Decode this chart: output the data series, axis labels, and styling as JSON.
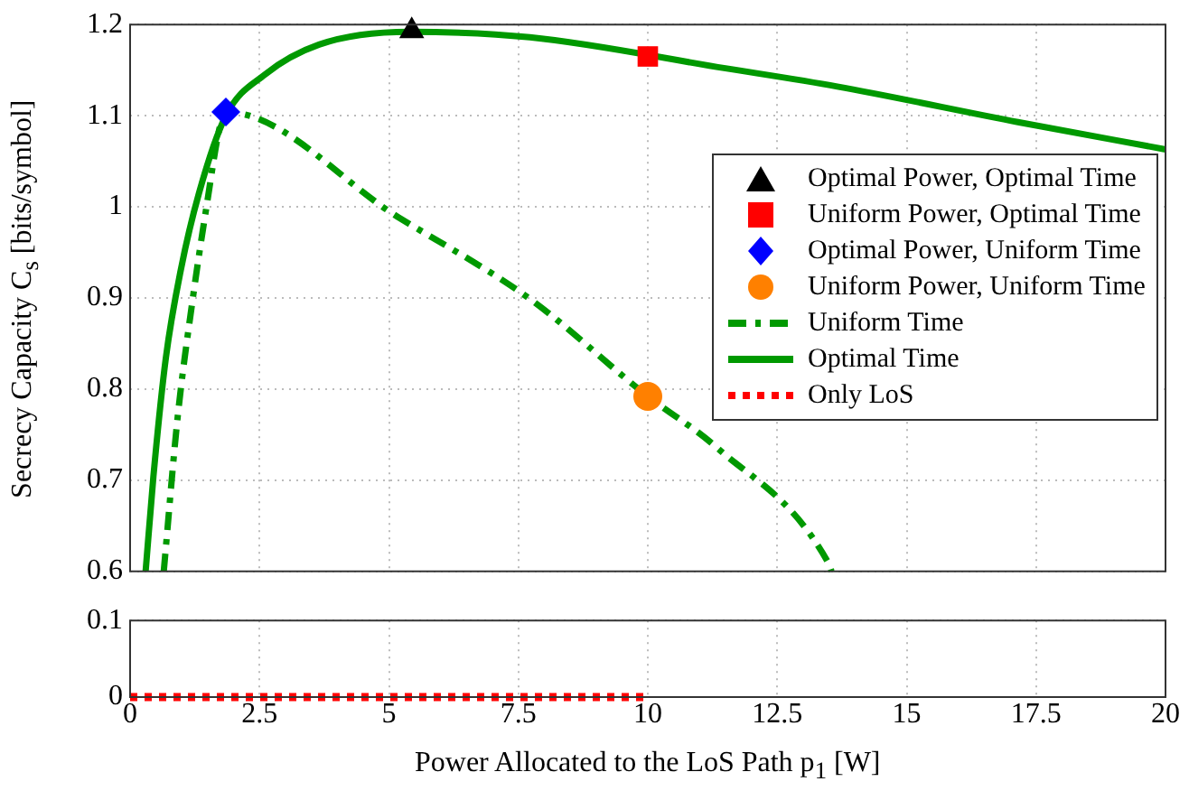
{
  "chart_data": [
    {
      "type": "line",
      "ylabel": "Secrecy Capacity C$_{s}$ [bits/symbol]",
      "xlim": [
        0,
        20
      ],
      "xticks": [
        0,
        2.5,
        5,
        7.5,
        10,
        12.5,
        15,
        17.5,
        20
      ],
      "ylim": [
        0.6,
        1.2
      ],
      "yticks": [
        0.6,
        0.7,
        0.8,
        0.9,
        1,
        1.1,
        1.2
      ],
      "tick_labels": "y",
      "grid": true,
      "legend": "right",
      "series": [
        {
          "name": "Optimal Power, Optimal Time",
          "type": "scatter",
          "marker": "triangle",
          "color": "#000000",
          "x": [
            5.44
          ],
          "values": [
            1.193
          ]
        },
        {
          "name": "Uniform Power, Optimal Time",
          "type": "scatter",
          "marker": "square",
          "color": "#ff0000",
          "x": [
            10
          ],
          "values": [
            1.165
          ]
        },
        {
          "name": "Optimal Power, Uniform Time",
          "type": "scatter",
          "marker": "diamond",
          "color": "#0000ff",
          "x": [
            1.85
          ],
          "values": [
            1.104
          ]
        },
        {
          "name": "Uniform Power, Uniform Time",
          "type": "scatter",
          "marker": "circle",
          "color": "#ff8000",
          "x": [
            10
          ],
          "values": [
            0.792
          ]
        },
        {
          "name": "Uniform Time",
          "type": "line",
          "line_style": "dashed",
          "color": "#009900",
          "x": [
            0.65,
            0.92,
            1.21,
            1.5,
            1.73,
            1.85,
            5.17,
            7.72,
            10,
            11.33,
            13.48,
            13.55
          ],
          "values": [
            0.6,
            0.77,
            0.899,
            1.009,
            1.087,
            1.104,
            0.989,
            0.899,
            0.792,
            0.736,
            0.61,
            0.6
          ]
        },
        {
          "name": "Optimal Time",
          "type": "line",
          "line_style": "solid",
          "color": "#009900",
          "x": [
            0.3,
            0.45,
            0.69,
            0.98,
            1.33,
            1.85,
            2.6,
            3.65,
            5.4,
            7.72,
            11.5,
            13.66,
            17.15,
            20
          ],
          "values": [
            0.6,
            0.704,
            0.834,
            0.931,
            1.015,
            1.1,
            1.145,
            1.178,
            1.192,
            1.186,
            1.152,
            1.132,
            1.093,
            1.063
          ]
        },
        {
          "name": "Only LoS",
          "type": "line",
          "line_style": "dotted",
          "color": "#ff0000"
        }
      ]
    },
    {
      "type": "line",
      "xlabel": "Power Allocated to the LoS Path p$_{1}$ [W]",
      "xlim": [
        0,
        20
      ],
      "xticks": [
        0,
        2.5,
        5,
        7.5,
        10,
        12.5,
        15,
        17.5,
        20
      ],
      "ylim": [
        0,
        0.1
      ],
      "yticks": [
        0,
        0.1
      ],
      "grid": true,
      "series": [
        {
          "type": "line",
          "line_style": "dotted",
          "color": "#ff0000",
          "x": [
            0,
            10
          ],
          "values": [
            0,
            0
          ]
        }
      ]
    }
  ]
}
